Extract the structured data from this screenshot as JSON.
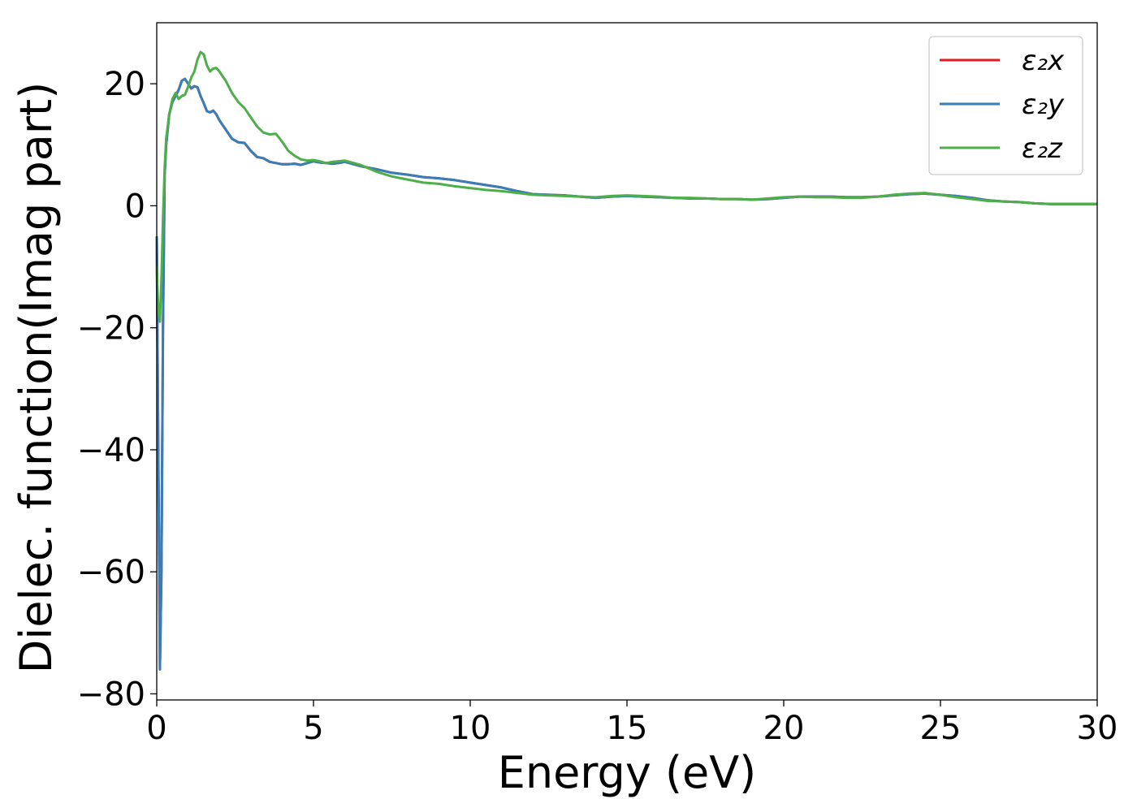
{
  "chart_data": {
    "type": "line",
    "xlabel": "Energy (eV)",
    "ylabel": "Dielec. function(Imag part)",
    "xlim": [
      0,
      30
    ],
    "ylim": [
      -81,
      30
    ],
    "xticks": [
      0,
      5,
      10,
      15,
      20,
      25,
      30
    ],
    "yticks": [
      20,
      0,
      -20,
      -40,
      -60,
      -80
    ],
    "ytick_labels": [
      "20",
      "0",
      "−20",
      "−40",
      "−60",
      "−80"
    ],
    "grid": false,
    "legend_position": "top-right",
    "series": [
      {
        "name": "ε₂x",
        "color": "#e41a1c",
        "x": [
          0,
          0.05,
          0.1,
          0.15,
          0.2,
          0.25,
          0.3,
          0.4,
          0.5,
          0.6,
          0.7,
          0.8,
          0.9,
          1.0,
          1.1,
          1.2,
          1.3,
          1.4,
          1.5,
          1.6,
          1.7,
          1.8,
          1.9,
          2.0,
          2.2,
          2.4,
          2.6,
          2.8,
          3.0,
          3.2,
          3.4,
          3.6,
          3.8,
          4.0,
          4.2,
          4.4,
          4.6,
          4.8,
          5.0,
          5.2,
          5.4,
          5.6,
          5.8,
          6.0,
          6.5,
          7.0,
          7.5,
          8.0,
          8.5,
          9.0,
          9.5,
          10.0,
          10.5,
          11.0,
          11.5,
          12.0,
          12.5,
          13.0,
          13.5,
          14.0,
          14.5,
          15.0,
          15.5,
          16.0,
          16.5,
          17.0,
          17.5,
          18.0,
          18.5,
          19.0,
          19.5,
          20.0,
          20.5,
          21.0,
          21.5,
          22.0,
          22.5,
          23.0,
          23.5,
          24.0,
          24.5,
          25.0,
          25.5,
          26.0,
          26.5,
          27.0,
          27.5,
          28.0,
          28.5,
          29.0,
          29.5,
          30.0
        ],
        "y": [
          -5,
          -40,
          -76,
          -60,
          -20,
          5,
          10,
          15,
          17,
          18,
          19,
          20.5,
          20.8,
          20,
          19.2,
          19.6,
          19.4,
          18,
          16.8,
          15.5,
          15.3,
          15.6,
          15,
          14,
          12.5,
          11,
          10.4,
          10.3,
          9,
          8,
          7.8,
          7.2,
          7,
          6.8,
          6.8,
          6.9,
          6.7,
          7,
          7.3,
          7.1,
          7,
          6.9,
          7,
          7.2,
          6.5,
          6,
          5.4,
          5.1,
          4.7,
          4.5,
          4.2,
          3.8,
          3.4,
          3.0,
          2.4,
          1.9,
          1.8,
          1.7,
          1.5,
          1.3,
          1.5,
          1.6,
          1.5,
          1.4,
          1.3,
          1.2,
          1.2,
          1.1,
          1.1,
          1.0,
          1.1,
          1.3,
          1.5,
          1.5,
          1.5,
          1.4,
          1.4,
          1.5,
          1.7,
          1.9,
          2.0,
          1.8,
          1.6,
          1.3,
          0.9,
          0.7,
          0.6,
          0.4,
          0.3,
          0.3,
          0.3,
          0.3
        ]
      },
      {
        "name": "ε₂y",
        "color": "#377eb8",
        "x": [
          0,
          0.05,
          0.1,
          0.15,
          0.2,
          0.25,
          0.3,
          0.4,
          0.5,
          0.6,
          0.7,
          0.8,
          0.9,
          1.0,
          1.1,
          1.2,
          1.3,
          1.4,
          1.5,
          1.6,
          1.7,
          1.8,
          1.9,
          2.0,
          2.2,
          2.4,
          2.6,
          2.8,
          3.0,
          3.2,
          3.4,
          3.6,
          3.8,
          4.0,
          4.2,
          4.4,
          4.6,
          4.8,
          5.0,
          5.2,
          5.4,
          5.6,
          5.8,
          6.0,
          6.5,
          7.0,
          7.5,
          8.0,
          8.5,
          9.0,
          9.5,
          10.0,
          10.5,
          11.0,
          11.5,
          12.0,
          12.5,
          13.0,
          13.5,
          14.0,
          14.5,
          15.0,
          15.5,
          16.0,
          16.5,
          17.0,
          17.5,
          18.0,
          18.5,
          19.0,
          19.5,
          20.0,
          20.5,
          21.0,
          21.5,
          22.0,
          22.5,
          23.0,
          23.5,
          24.0,
          24.5,
          25.0,
          25.5,
          26.0,
          26.5,
          27.0,
          27.5,
          28.0,
          28.5,
          29.0,
          29.5,
          30.0
        ],
        "y": [
          -5,
          -40,
          -76,
          -60,
          -20,
          5,
          10,
          15,
          17,
          18,
          19,
          20.5,
          20.8,
          20,
          19.2,
          19.6,
          19.4,
          18,
          16.8,
          15.5,
          15.3,
          15.6,
          15,
          14,
          12.5,
          11,
          10.4,
          10.3,
          9,
          8,
          7.8,
          7.2,
          7,
          6.8,
          6.8,
          6.9,
          6.7,
          7,
          7.3,
          7.1,
          7,
          6.9,
          7,
          7.2,
          6.5,
          6,
          5.4,
          5.1,
          4.7,
          4.5,
          4.2,
          3.8,
          3.4,
          3.0,
          2.4,
          1.9,
          1.8,
          1.7,
          1.5,
          1.3,
          1.5,
          1.6,
          1.5,
          1.4,
          1.3,
          1.2,
          1.2,
          1.1,
          1.1,
          1.0,
          1.1,
          1.3,
          1.5,
          1.5,
          1.5,
          1.4,
          1.4,
          1.5,
          1.7,
          1.9,
          2.0,
          1.8,
          1.6,
          1.3,
          0.9,
          0.7,
          0.6,
          0.4,
          0.3,
          0.3,
          0.3,
          0.3
        ]
      },
      {
        "name": "ε₂z",
        "color": "#4daf4a",
        "x": [
          0,
          0.05,
          0.1,
          0.15,
          0.2,
          0.25,
          0.3,
          0.4,
          0.5,
          0.6,
          0.7,
          0.8,
          0.9,
          1.0,
          1.1,
          1.2,
          1.3,
          1.4,
          1.5,
          1.6,
          1.7,
          1.8,
          1.9,
          2.0,
          2.2,
          2.4,
          2.6,
          2.8,
          3.0,
          3.2,
          3.4,
          3.6,
          3.8,
          4.0,
          4.2,
          4.4,
          4.6,
          4.8,
          5.0,
          5.2,
          5.4,
          5.6,
          5.8,
          6.0,
          6.5,
          7.0,
          7.5,
          8.0,
          8.5,
          9.0,
          9.5,
          10.0,
          10.5,
          11.0,
          11.5,
          12.0,
          12.5,
          13.0,
          13.5,
          14.0,
          14.5,
          15.0,
          15.5,
          16.0,
          16.5,
          17.0,
          17.5,
          18.0,
          18.5,
          19.0,
          19.5,
          20.0,
          20.5,
          21.0,
          21.5,
          22.0,
          22.5,
          23.0,
          23.5,
          24.0,
          24.5,
          25.0,
          25.5,
          26.0,
          26.5,
          27.0,
          27.5,
          28.0,
          28.5,
          29.0,
          29.5,
          30.0
        ],
        "y": [
          -10,
          -17,
          -19,
          -12,
          -2,
          6,
          11,
          15,
          17.5,
          18.5,
          17.5,
          18,
          18.2,
          19.5,
          21,
          22,
          24,
          25.2,
          24.8,
          23,
          22,
          22.5,
          22.6,
          22,
          20.5,
          18.5,
          17,
          16,
          14.5,
          13,
          12,
          11.7,
          11.8,
          10.5,
          9,
          8.2,
          7.6,
          7.4,
          7.5,
          7.3,
          7,
          7.2,
          7.3,
          7.4,
          6.7,
          5.6,
          4.8,
          4.3,
          3.8,
          3.6,
          3.2,
          2.9,
          2.6,
          2.4,
          2.1,
          1.8,
          1.7,
          1.6,
          1.5,
          1.4,
          1.6,
          1.7,
          1.6,
          1.5,
          1.3,
          1.3,
          1.2,
          1.1,
          1.1,
          1.0,
          1.2,
          1.4,
          1.5,
          1.4,
          1.4,
          1.3,
          1.3,
          1.5,
          1.8,
          2.0,
          2.1,
          1.8,
          1.4,
          1.1,
          0.8,
          0.7,
          0.6,
          0.4,
          0.3,
          0.3,
          0.3,
          0.3
        ]
      }
    ]
  }
}
